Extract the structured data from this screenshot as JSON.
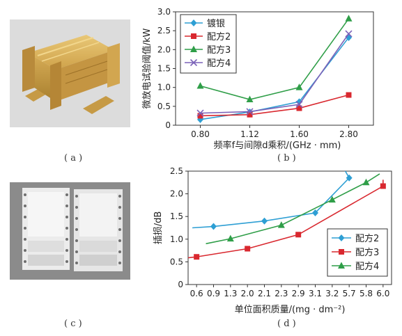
{
  "panels": {
    "a": {
      "caption": "( a )"
    },
    "b": {
      "caption": "( b )"
    },
    "c": {
      "caption": "( c )"
    },
    "d": {
      "caption": "( d )"
    }
  },
  "colors": {
    "series_blue": "#2e9fd4",
    "series_red": "#d9282f",
    "series_green": "#2f9e48",
    "series_purple": "#7b62b8",
    "device_gold": "#d8b056",
    "plate_white": "#e8e8e8"
  },
  "chart_data": [
    {
      "id": "b",
      "type": "line",
      "title": "",
      "xlabel": "频率f与间隙d乘积/(GHz · mm)",
      "ylabel": "微放电试验阈值/kW",
      "categories": [
        "0.80",
        "1.12",
        "1.60",
        "2.80"
      ],
      "yticks": [
        "0",
        "0.5",
        "1.0",
        "1.5",
        "2.0",
        "2.5",
        "3.0"
      ],
      "ylim": [
        0,
        3.0
      ],
      "grid": false,
      "legend_position": "top-left",
      "series": [
        {
          "name": "镀银",
          "marker": "diamond",
          "color": "#2e9fd4",
          "values": [
            0.15,
            0.35,
            0.62,
            2.32
          ]
        },
        {
          "name": "配方2",
          "marker": "square",
          "color": "#d9282f",
          "values": [
            0.25,
            0.28,
            0.45,
            0.8
          ]
        },
        {
          "name": "配方3",
          "marker": "triangle",
          "color": "#2f9e48",
          "values": [
            1.04,
            0.68,
            1.0,
            2.82
          ]
        },
        {
          "name": "配方4",
          "marker": "x",
          "color": "#7b62b8",
          "values": [
            0.32,
            0.36,
            0.55,
            2.42
          ]
        }
      ]
    },
    {
      "id": "d",
      "type": "line",
      "title": "",
      "xlabel": "单位面积质量/(mg · dm⁻²)",
      "ylabel": "插损/dB",
      "categories": [
        "0.6",
        "0.9",
        "1.3",
        "2.0",
        "2.1",
        "2.3",
        "2.9",
        "3.1",
        "3.2",
        "5.7",
        "5.8",
        "6.0"
      ],
      "yticks": [
        "0",
        "0.5",
        "1.0",
        "1.5",
        "2.0",
        "2.5"
      ],
      "ylim": [
        0,
        2.5
      ],
      "grid": false,
      "legend_position": "bottom-right",
      "series": [
        {
          "name": "配方2",
          "marker": "diamond",
          "color": "#2e9fd4",
          "points": [
            {
              "x": "0.9",
              "y": 1.28
            },
            {
              "x": "2.1",
              "y": 1.4
            },
            {
              "x": "3.1",
              "y": 1.58
            },
            {
              "x": "5.7",
              "y": 2.35
            }
          ],
          "line_ends": [
            [
              -0.25,
              1.25
            ],
            [
              8.7,
              2.55
            ]
          ]
        },
        {
          "name": "配方3",
          "marker": "square",
          "color": "#d9282f",
          "points": [
            {
              "x": "0.6",
              "y": 0.61
            },
            {
              "x": "2.0",
              "y": 0.79
            },
            {
              "x": "2.9",
              "y": 1.1
            },
            {
              "x": "6.0",
              "y": 2.17
            }
          ],
          "line_ends": [
            [
              -1.0,
              0.57
            ],
            [
              11.0,
              2.31
            ]
          ]
        },
        {
          "name": "配方4",
          "marker": "triangle",
          "color": "#2f9e48",
          "points": [
            {
              "x": "1.3",
              "y": 1.01
            },
            {
              "x": "2.3",
              "y": 1.31
            },
            {
              "x": "3.2",
              "y": 1.87
            },
            {
              "x": "5.8",
              "y": 2.25
            }
          ],
          "line_ends": [
            [
              0.55,
              0.9
            ],
            [
              10.8,
              2.44
            ]
          ]
        }
      ]
    }
  ]
}
